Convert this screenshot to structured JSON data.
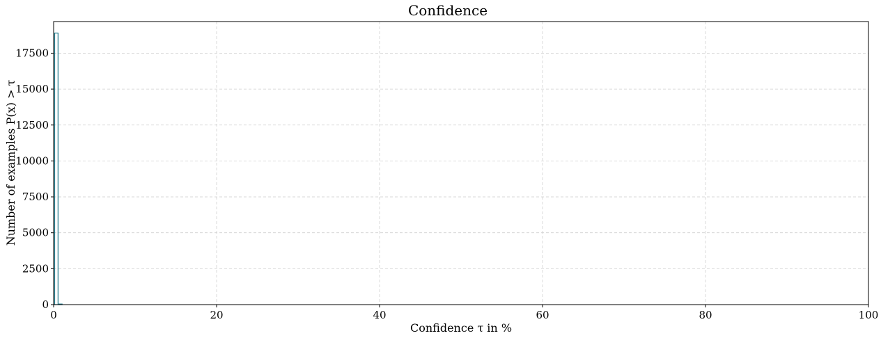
{
  "chart_data": {
    "type": "bar",
    "title": "Confidence",
    "xlabel": "Confidence τ in %",
    "ylabel": "Number of examples P(x) > τ",
    "xlim": [
      0,
      100
    ],
    "ylim": [
      0,
      19700
    ],
    "xticks": [
      0,
      20,
      40,
      60,
      80,
      100
    ],
    "yticks": [
      0,
      2500,
      5000,
      7500,
      10000,
      12500,
      15000,
      17500
    ],
    "grid": true,
    "bar_color": "#1f7a8c",
    "bins": [
      {
        "x0": 0.0,
        "x1": 0.5,
        "value": 18900
      },
      {
        "x0": 0.5,
        "x1": 1.0,
        "value": 40
      }
    ]
  }
}
